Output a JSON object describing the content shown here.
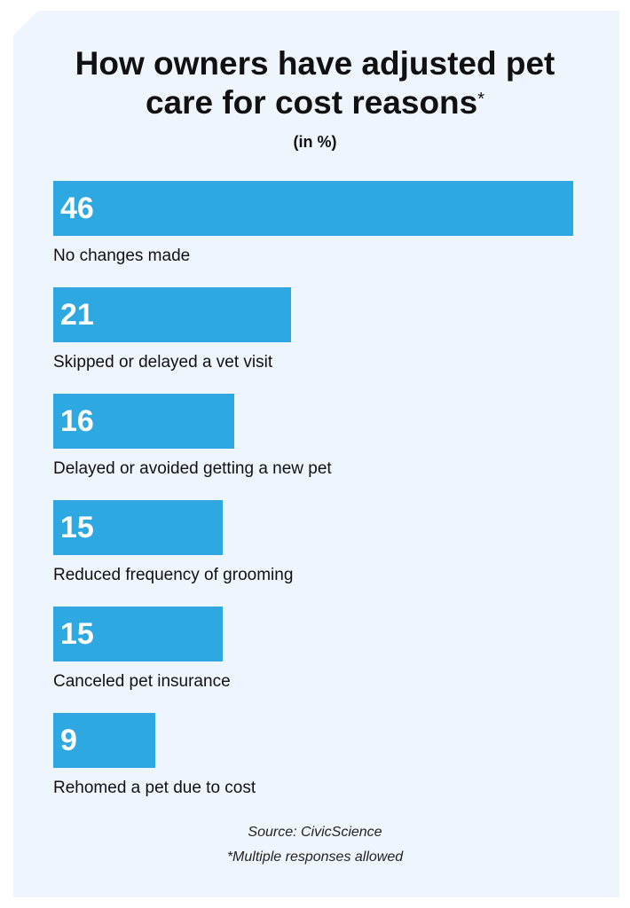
{
  "chart_data": {
    "type": "bar",
    "orientation": "horizontal",
    "title": "How owners have adjusted pet care for cost reasons",
    "title_mark": "*",
    "subtitle": "(in %)",
    "categories": [
      "No changes made",
      "Skipped or delayed a vet visit",
      "Delayed or avoided getting a new pet",
      "Reduced frequency of grooming",
      "Canceled pet insurance",
      "Rehomed a pet due to cost"
    ],
    "values": [
      46,
      21,
      16,
      15,
      15,
      9
    ],
    "color": "#2ea8e0",
    "source": "Source: CivicScience",
    "note": "*Multiple responses allowed"
  }
}
